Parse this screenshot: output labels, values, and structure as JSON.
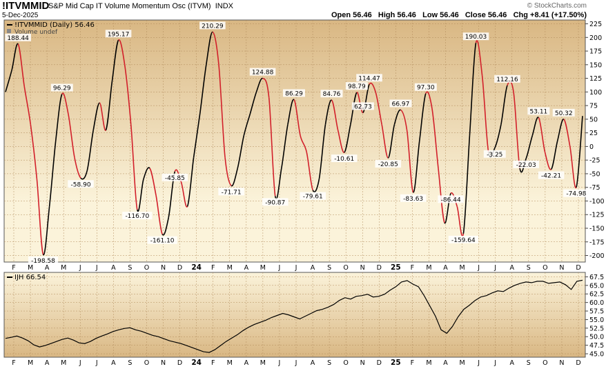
{
  "header": {
    "symbol": "!ITVMMID",
    "name": "S&P Mid Cap IT Volume Momentum Osc (ITVM)",
    "exchange": "INDX",
    "date": "5-Dec-2025",
    "credit": "© StockCharts.com",
    "open_label": "Open",
    "open": "56.46",
    "high_label": "High",
    "high": "56.46",
    "low_label": "Low",
    "low": "56.46",
    "close_label": "Close",
    "close": "56.46",
    "chg_label": "Chg",
    "chg": "+8.41 (+17.50%)"
  },
  "colors": {
    "up": "#000000",
    "down": "#d21f2a",
    "grid": "#b08a5a",
    "panel_top": "#d9b783",
    "panel_mid": "#fbf3da",
    "price_line": "#000000"
  },
  "chart_data": [
    {
      "type": "line",
      "legend": [
        "!ITVMMID (Daily) 56.46",
        "Volume undef"
      ],
      "ylim": [
        -212,
        232
      ],
      "yticks": [
        225,
        200,
        175,
        150,
        125,
        100,
        75,
        50,
        25,
        0,
        -25,
        -50,
        -75,
        -100,
        -125,
        -150,
        -175,
        -200
      ],
      "month_ticks": [
        "F",
        "M",
        "A",
        "M",
        "J",
        "J",
        "A",
        "S",
        "O",
        "N",
        "D",
        "24",
        "F",
        "M",
        "A",
        "M",
        "J",
        "J",
        "A",
        "S",
        "O",
        "N",
        "D",
        "25",
        "F",
        "M",
        "A",
        "M",
        "J",
        "J",
        "A",
        "S",
        "O",
        "N",
        "D"
      ],
      "series": [
        {
          "values": [
            100,
            140,
            188,
            110,
            40,
            -60,
            -198,
            -110,
            10,
            96,
            60,
            -20,
            -58,
            -45,
            30,
            80,
            30,
            120,
            195,
            150,
            40,
            -116,
            -60,
            -40,
            -90,
            -161,
            -130,
            -46,
            -65,
            -110,
            -20,
            60,
            150,
            210,
            150,
            -20,
            -72,
            -40,
            20,
            60,
            100,
            125,
            90,
            -91,
            -40,
            40,
            86,
            20,
            -10,
            -80,
            -60,
            40,
            85,
            30,
            -11,
            40,
            99,
            62,
            114,
            100,
            40,
            -21,
            40,
            67,
            30,
            -84,
            10,
            97,
            70,
            -40,
            -140,
            -86,
            -110,
            -160,
            20,
            190,
            130,
            -10,
            -3,
            40,
            112,
            100,
            -40,
            -22,
            20,
            53,
            -10,
            -42,
            10,
            50,
            0,
            -75,
            56
          ]
        }
      ],
      "annotations": [
        {
          "label": "188.44",
          "v": 188.44
        },
        {
          "label": "-198.58",
          "v": -198.58
        },
        {
          "label": "96.29",
          "v": 96.29
        },
        {
          "label": "-58.90",
          "v": -58.9
        },
        {
          "label": "195.17",
          "v": 195.17
        },
        {
          "label": "-116.70",
          "v": -116.7
        },
        {
          "label": "-161.10",
          "v": -161.1
        },
        {
          "label": "-45.85",
          "v": -45.85
        },
        {
          "label": "210.29",
          "v": 210.29
        },
        {
          "label": "-71.71",
          "v": -71.71
        },
        {
          "label": "124.88",
          "v": 124.88
        },
        {
          "label": "-90.87",
          "v": -90.87
        },
        {
          "label": "86.29",
          "v": 86.29
        },
        {
          "label": "-79.61",
          "v": -79.61
        },
        {
          "label": "84.76",
          "v": 84.76
        },
        {
          "label": "-10.61",
          "v": -10.61
        },
        {
          "label": "98.79",
          "v": 98.79
        },
        {
          "label": "62.73",
          "v": 62.73
        },
        {
          "label": "114.47",
          "v": 114.47
        },
        {
          "label": "-20.85",
          "v": -20.85
        },
        {
          "label": "66.97",
          "v": 66.97
        },
        {
          "label": "-83.63",
          "v": -83.63
        },
        {
          "label": "97.30",
          "v": 97.3
        },
        {
          "label": "-86.44",
          "v": -86.44
        },
        {
          "label": "-159.64",
          "v": -159.64
        },
        {
          "label": "190.03",
          "v": 190.03
        },
        {
          "label": "-3.25",
          "v": -3.25
        },
        {
          "label": "112.16",
          "v": 112.16
        },
        {
          "label": "-22.03",
          "v": -22.03
        },
        {
          "label": "53.11",
          "v": 53.11
        },
        {
          "label": "-42.21",
          "v": -42.21
        },
        {
          "label": "50.32",
          "v": 50.32
        },
        {
          "label": "-74.98",
          "v": -74.98
        }
      ]
    },
    {
      "type": "line",
      "legend": [
        "IJH 66.54"
      ],
      "ylim": [
        44,
        68.8
      ],
      "yticks": [
        67.5,
        65.0,
        62.5,
        60.0,
        57.5,
        55.0,
        52.5,
        50.0,
        47.5,
        45.0
      ],
      "month_ticks": [
        "F",
        "M",
        "A",
        "M",
        "J",
        "J",
        "A",
        "S",
        "O",
        "N",
        "D",
        "24",
        "F",
        "M",
        "A",
        "M",
        "J",
        "J",
        "A",
        "S",
        "O",
        "N",
        "D",
        "25",
        "F",
        "M",
        "A",
        "M",
        "J",
        "J",
        "A",
        "S",
        "O",
        "N",
        "D"
      ],
      "series": [
        {
          "name": "IJH",
          "values": [
            49.5,
            49.8,
            50.2,
            49.6,
            48.8,
            47.6,
            47.0,
            47.4,
            48.0,
            48.6,
            49.2,
            49.6,
            49.0,
            48.2,
            48.0,
            48.6,
            49.5,
            50.2,
            50.8,
            51.5,
            52.0,
            52.4,
            52.6,
            52.0,
            51.6,
            51.0,
            50.4,
            50.0,
            49.4,
            48.8,
            48.4,
            48.0,
            47.4,
            46.8,
            46.2,
            45.6,
            45.4,
            46.2,
            47.4,
            48.6,
            49.6,
            50.6,
            51.8,
            52.8,
            53.6,
            54.2,
            54.8,
            55.6,
            56.2,
            56.8,
            56.4,
            55.8,
            55.2,
            56.0,
            56.8,
            57.6,
            58.0,
            58.6,
            59.4,
            60.6,
            61.4,
            61.0,
            61.8,
            62.0,
            62.4,
            61.6,
            61.8,
            62.4,
            63.6,
            64.6,
            66.0,
            66.4,
            65.4,
            64.6,
            62.0,
            59.0,
            56.0,
            52.0,
            51.0,
            53.0,
            55.8,
            58.0,
            59.2,
            60.6,
            61.6,
            62.0,
            62.8,
            63.4,
            63.2,
            64.2,
            65.0,
            65.6,
            66.0,
            65.8,
            66.2,
            66.2,
            65.6,
            65.8,
            66.0,
            65.2,
            63.8,
            66.2,
            66.5
          ]
        }
      ]
    }
  ]
}
